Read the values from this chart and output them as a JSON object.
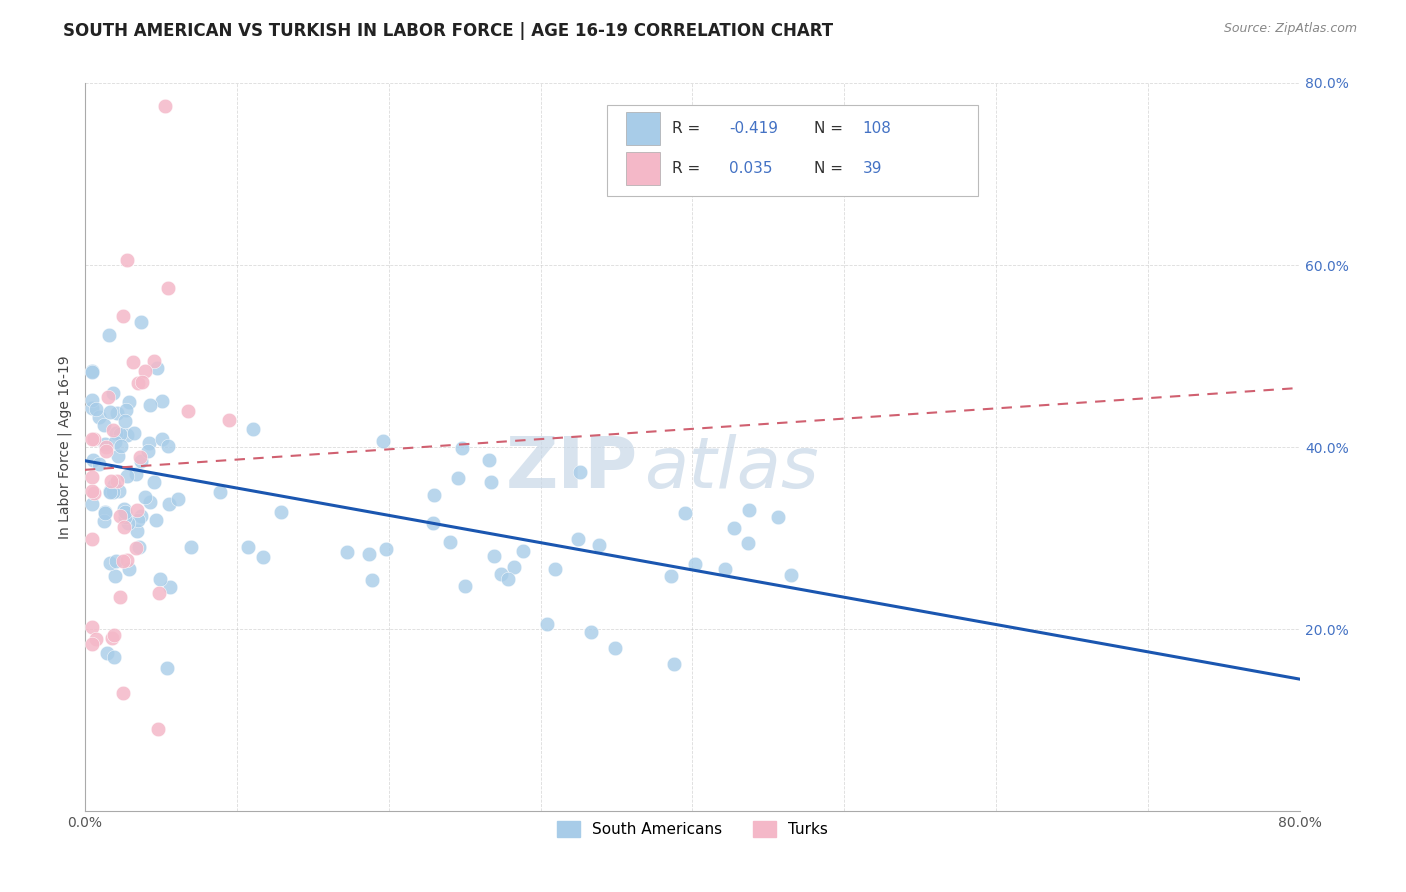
{
  "title": "SOUTH AMERICAN VS TURKISH IN LABOR FORCE | AGE 16-19 CORRELATION CHART",
  "source": "Source: ZipAtlas.com",
  "ylabel": "In Labor Force | Age 16-19",
  "xlim": [
    0.0,
    0.8
  ],
  "ylim": [
    0.0,
    0.8
  ],
  "xtick_pos": [
    0.0,
    0.1,
    0.2,
    0.3,
    0.4,
    0.5,
    0.6,
    0.7,
    0.8
  ],
  "xtick_labels": [
    "0.0%",
    "",
    "",
    "",
    "",
    "",
    "",
    "",
    "80.0%"
  ],
  "ytick_pos": [
    0.0,
    0.2,
    0.4,
    0.6,
    0.8
  ],
  "ytick_labels_right": [
    "",
    "20.0%",
    "40.0%",
    "60.0%",
    "80.0%"
  ],
  "legend_blue_label": "South Americans",
  "legend_pink_label": "Turks",
  "blue_R": -0.419,
  "blue_N": 108,
  "pink_R": 0.035,
  "pink_N": 39,
  "blue_color": "#a8cce8",
  "pink_color": "#f4b8c8",
  "blue_line_color": "#1a56b0",
  "pink_line_color": "#d06070",
  "watermark_zip": "ZIP",
  "watermark_atlas": "atlas",
  "background_color": "#ffffff",
  "grid_color": "#cccccc",
  "title_fontsize": 12,
  "axis_label_fontsize": 10,
  "tick_fontsize": 10,
  "right_tick_color": "#4472c4",
  "legend_text_color_label": "#333333",
  "legend_text_color_value": "#4472c4"
}
